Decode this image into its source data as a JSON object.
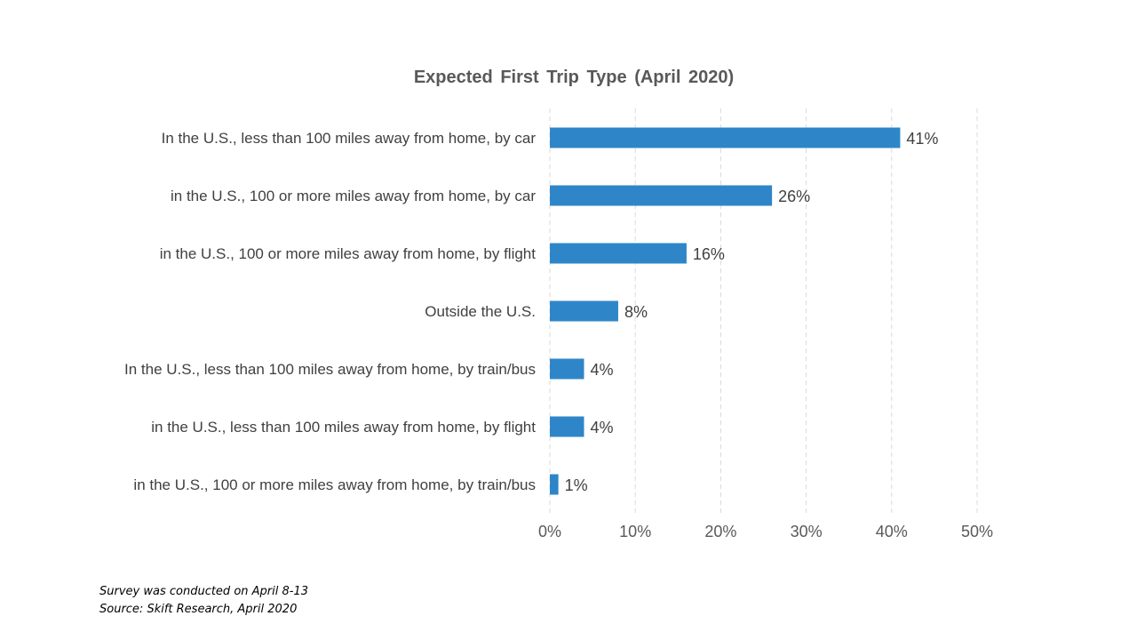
{
  "chart_data": {
    "type": "bar",
    "orientation": "horizontal",
    "title": "Expected First Trip Type (April 2020)",
    "categories": [
      "In the U.S., less than 100 miles away from home, by car",
      "in the U.S., 100 or more miles away from home, by car",
      "in the U.S., 100 or more miles away from home, by flight",
      "Outside the U.S.",
      "In the U.S., less than 100 miles away from home, by train/bus",
      "in the U.S., less than 100 miles away from home, by flight",
      "in the U.S., 100 or more miles away from home, by train/bus"
    ],
    "values": [
      41,
      26,
      16,
      8,
      4,
      4,
      1
    ],
    "data_labels": [
      "41%",
      "26%",
      "16%",
      "8%",
      "4%",
      "4%",
      "1%"
    ],
    "x_ticks": [
      "0%",
      "10%",
      "20%",
      "30%",
      "40%",
      "50%"
    ],
    "xlim": [
      0,
      50
    ],
    "grid": "vertical dashed",
    "legend": "none",
    "colors": {
      "bar": "#2E86C8",
      "grid": "#D9D9D9",
      "title": "#595959",
      "label": "#404040"
    }
  },
  "notes": {
    "line1": "Survey was conducted on April 8-13",
    "line2": "Source: Skift Research, April 2020"
  }
}
